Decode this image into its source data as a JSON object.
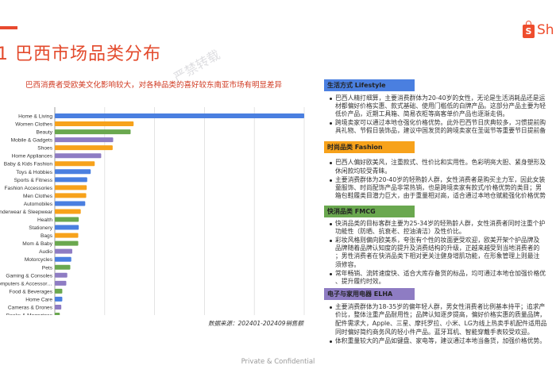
{
  "header": {
    "title": "1 巴西市场品类分布",
    "subtitle": "巴西消费者受欧美文化影响较大，对各种品类的喜好较东南亚市场有明显差异",
    "logo_text": "Sh",
    "logo_icon": "shopee-bag-icon",
    "watermark": "严禁转载"
  },
  "chart_data": {
    "type": "bar",
    "orientation": "horizontal",
    "categories": [
      "Home & Living",
      "Women Clothes",
      "Beauty",
      "Mobile & Gadgets",
      "Shoes",
      "Home Appliances",
      "Baby & Kids Fashion",
      "Toys & Hobbies",
      "Sports & Fitness",
      "Fashion Accessories",
      "Men Clothes",
      "Automobiles",
      "Underwear & Sleepwear",
      "Health",
      "Stationery",
      "Bags",
      "Mom & Baby",
      "Audio",
      "Motorcycles",
      "Pets",
      "Gaming & Consoles",
      "Computers & Accessor…",
      "Food & Beverages",
      "Home Care",
      "Cameras & Drones",
      "Books & Magazines"
    ],
    "values": [
      5.0,
      1.58,
      1.52,
      1.17,
      1.16,
      0.93,
      0.8,
      0.72,
      0.65,
      0.64,
      0.63,
      0.61,
      0.52,
      0.48,
      0.48,
      0.47,
      0.47,
      0.35,
      0.33,
      0.31,
      0.25,
      0.23,
      0.15,
      0.15,
      0.13,
      0.1
    ],
    "groups": [
      "Lifestyle",
      "Fashion",
      "FMCG",
      "ELHA",
      "Fashion",
      "ELHA",
      "Fashion",
      "Lifestyle",
      "Lifestyle",
      "Fashion",
      "Fashion",
      "Lifestyle",
      "Fashion",
      "FMCG",
      "Lifestyle",
      "Fashion",
      "FMCG",
      "ELHA",
      "Lifestyle",
      "FMCG",
      "ELHA",
      "ELHA",
      "FMCG",
      "Lifestyle",
      "ELHA",
      "FMCG"
    ],
    "group_colors": {
      "Lifestyle": "#4a7fe0",
      "Fashion": "#f7a21b",
      "FMCG": "#6aa84f",
      "ELHA": "#8e7cc3"
    },
    "xlim": [
      0,
      5
    ],
    "grid": true,
    "tick_labels_shown": false,
    "title": "",
    "xlabel": "",
    "ylabel": ""
  },
  "source_note": "数据来源：202401-202409销售额",
  "footer": "Private & Confidential",
  "sections": [
    {
      "title": "生活方式 Lifestyle",
      "color": "#4a7fe0",
      "bullets": [
        [
          "巴西人精打细算，主要消费群体为20-40岁的女性，无论是生活消耗品还是运",
          "材都偏好价格实惠、款式基础、使用门槛低的白牌产品。这部分产品主要为轻",
          "低价产品，近期工具箱、简易衣柜等高客单价产品也逐渐走俏。"
        ],
        [
          "跨境卖家可以通过本地仓强化价格优势。此外巴西节日庆典较多，习惯提前购",
          "具礼物、节假日装饰品，建议中国发货的跨境卖家在圣诞节等重要节日提前备"
        ]
      ]
    },
    {
      "title": "时尚品类 Fashion",
      "color": "#f7a21b",
      "bullets": [
        [
          "巴西人偏好欧美风，注重款式、性价比和实用性。色彩明亮大胆、紧身塑形及",
          "休闲款均较受青睐。"
        ],
        [
          "主要消费群体为20-40岁的轻熟龄人群，女性消费者是购买主力军，因此女装",
          "童服饰、时尚配饰产品非常热销，也是跨境卖家有款式/价格优势的类目；男",
          "箱包鞋履类目潜力巨大，由于重量相对高，适合通过本地仓赋能强化价格优势"
        ]
      ]
    },
    {
      "title": "快消品类 FMCG",
      "color": "#6aa84f",
      "bullets": [
        [
          "快消品类的目标客群主要为25-34岁的轻熟龄人群，女性消费者同时注重个护",
          "功能性（防晒、抗衰老、控油清洁）及性价比。"
        ],
        [
          "彩妆风格则偏向欧美系，夸张有个性的妆面更受欢迎，欧美开架个护品牌及",
          "品牌随着品牌认知度的提升及消费结构的升级，正越来越受到当地消费者的",
          "；男性消费者在快消品类下相对更关注健身增肌功能，在形象管理上则最注",
          "须修容。"
        ],
        [
          "常年畅销、流转速度快、适合大库存备货的标品，均可通过本地仓加强价格优",
          "、提升履约时效。"
        ]
      ]
    },
    {
      "title": "电子与家用电器 ELHA",
      "color": "#8e7cc3",
      "bullets": [
        [
          "主要消费群体为18-35岁的偏年轻人群，男女性消费者比例基本持平；追求产",
          "价比，整体注重产品耐用性；品牌认知逐步提高，偏好价格实惠的质量品牌，",
          "配件需求大，Apple、三星、摩托罗拉、小米、LG为线上热卖手机配件适用品",
          "同时偏好简约商务风的轻小件产品。蓝牙耳机、智能穿戴手表较受欢迎。"
        ],
        [
          "体积重量较大的产品如键盘、家电等，建议通过本地当备货，加强价格优势。"
        ]
      ]
    }
  ]
}
